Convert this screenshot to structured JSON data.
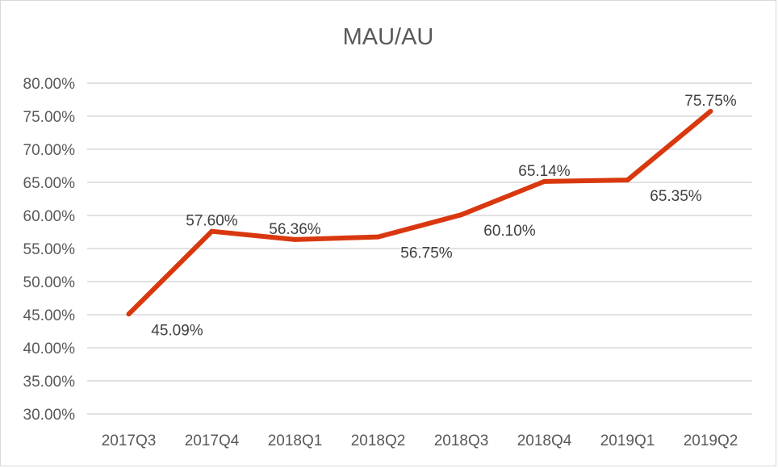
{
  "chart_data": {
    "type": "line",
    "title": "MAU/AU",
    "xlabel": "",
    "ylabel": "",
    "categories": [
      "2017Q3",
      "2017Q4",
      "2018Q1",
      "2018Q2",
      "2018Q3",
      "2018Q4",
      "2019Q1",
      "2019Q2"
    ],
    "series": [
      {
        "values": [
          45.09,
          57.6,
          56.36,
          56.75,
          60.1,
          65.14,
          65.35,
          75.75
        ],
        "data_labels": [
          "45.09%",
          "57.60%",
          "56.36%",
          "56.75%",
          "60.10%",
          "65.14%",
          "65.35%",
          "75.75%"
        ],
        "color": "#d9380f"
      }
    ],
    "ylim": [
      30,
      80
    ],
    "y_ticks": [
      30,
      35,
      40,
      45,
      50,
      55,
      60,
      65,
      70,
      75,
      80
    ],
    "y_tick_labels": [
      "30.00%",
      "35.00%",
      "40.00%",
      "45.00%",
      "50.00%",
      "55.00%",
      "60.00%",
      "65.00%",
      "70.00%",
      "75.00%",
      "80.00%"
    ],
    "grid": true,
    "legend": "none"
  }
}
